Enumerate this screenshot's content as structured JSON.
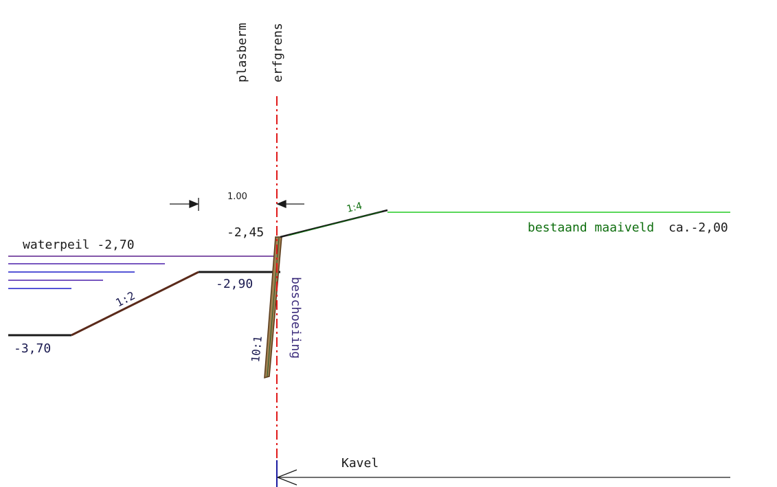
{
  "labels": {
    "plasberm": "plasberm",
    "erfgrens": "erfgrens",
    "dimension": "1.00",
    "level_top": "-2,45",
    "waterpeil": "waterpeil -2,70",
    "level_berm": "-2,90",
    "level_bottom": "-3,70",
    "slope_left": "1:2",
    "slope_right": "1:4",
    "slope_sheet": "10:1",
    "beschoeiing": "beschoeiing",
    "maaiveld": "bestaand maaiveld",
    "maaiveld_value": "ca.-2,00",
    "kavel": "Kavel"
  },
  "colors": {
    "water": "#1c1cc8",
    "waterpeil_line": "#5a1e8c",
    "profile": "#1a1a1a",
    "slope_brown": "#5a2a1a",
    "grass": "#22cc22",
    "grass_text": "#0e6e0e",
    "boundary": "#e01818",
    "sheet_pile": "#7a5a2a",
    "dark_text": "#1a1a50",
    "beschoeiing_text": "#3a2a7a"
  }
}
